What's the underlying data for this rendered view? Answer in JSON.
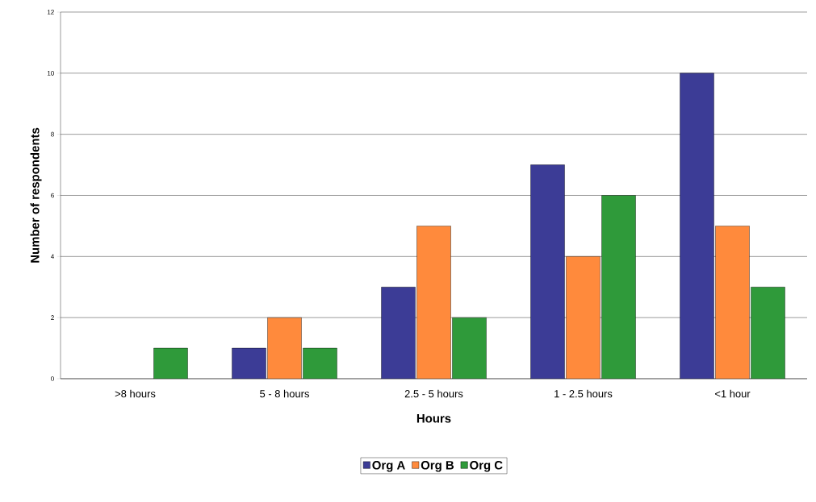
{
  "chart_data": {
    "type": "bar",
    "xlabel": "Hours",
    "ylabel": "Number of respondents",
    "categories": [
      ">8 hours",
      "5 - 8 hours",
      "2.5 - 5 hours",
      "1 - 2.5 hours",
      "<1 hour"
    ],
    "series": [
      {
        "name": "Org A",
        "color": "#3c3c96",
        "values": [
          null,
          1,
          3,
          7,
          10
        ]
      },
      {
        "name": "Org B",
        "color": "#ff8a3c",
        "values": [
          null,
          2,
          5,
          4,
          5
        ]
      },
      {
        "name": "Org C",
        "color": "#2f9a3a",
        "values": [
          1,
          1,
          2,
          6,
          3
        ]
      }
    ],
    "ylim": [
      0,
      12
    ],
    "yticks": [
      0,
      2,
      4,
      6,
      8,
      10,
      12
    ],
    "grid": "y",
    "legend": "bottom"
  }
}
